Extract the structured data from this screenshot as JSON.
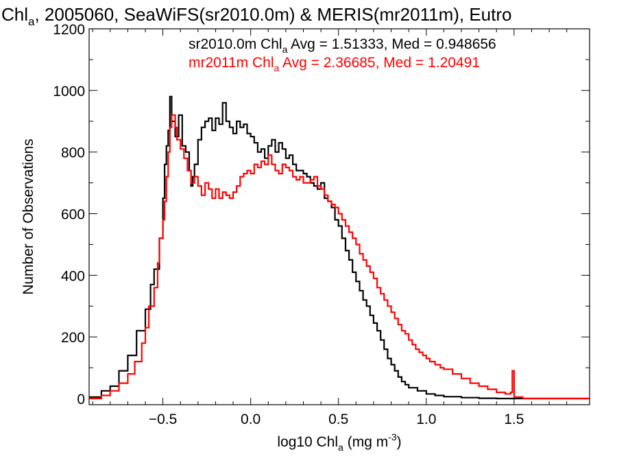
{
  "chart_data": {
    "type": "histogram",
    "title": {
      "prefix": "Chl",
      "sub": "a",
      "rest": ", 2005060, SeaWiFS(sr2010.0m) & MERIS(mr2011m), Eutro"
    },
    "xlabel": {
      "prefix": "log10 Chl",
      "sub": "a",
      "mid": " (mg m",
      "sup": "-3",
      "end": ")"
    },
    "ylabel": "Number of Observations",
    "xlim": [
      -0.92,
      1.93
    ],
    "ylim": [
      -20,
      1200
    ],
    "x_ticks": [
      {
        "value": -0.5,
        "label": "−0.5"
      },
      {
        "value": 0.0,
        "label": "0.0"
      },
      {
        "value": 0.5,
        "label": "0.5"
      },
      {
        "value": 1.0,
        "label": "1.0"
      },
      {
        "value": 1.5,
        "label": "1.5"
      }
    ],
    "y_ticks": [
      {
        "value": 0,
        "label": "0"
      },
      {
        "value": 200,
        "label": "200"
      },
      {
        "value": 400,
        "label": "400"
      },
      {
        "value": 600,
        "label": "600"
      },
      {
        "value": 800,
        "label": "800"
      },
      {
        "value": 1000,
        "label": "1000"
      },
      {
        "value": 1200,
        "label": "1200"
      }
    ],
    "legend": [
      {
        "name": "sr2010.0m",
        "color": "#000000",
        "parts": {
          "a": "sr2010.0m Chl",
          "sub": "a",
          "b": " Avg = 1.51333, Med = 0.948656"
        }
      },
      {
        "name": "mr2011m",
        "color": "#ff0000",
        "parts": {
          "a": "mr2011m Chl",
          "sub": "a",
          "b": " Avg = 2.36685, Med = 1.20491"
        }
      }
    ],
    "series": [
      {
        "name": "sr2010.0m",
        "color": "#000000",
        "points": [
          [
            -0.92,
            5
          ],
          [
            -0.85,
            25
          ],
          [
            -0.8,
            40
          ],
          [
            -0.75,
            90
          ],
          [
            -0.7,
            140
          ],
          [
            -0.65,
            220
          ],
          [
            -0.6,
            290
          ],
          [
            -0.57,
            370
          ],
          [
            -0.55,
            420
          ],
          [
            -0.52,
            520
          ],
          [
            -0.5,
            650
          ],
          [
            -0.49,
            760
          ],
          [
            -0.48,
            820
          ],
          [
            -0.47,
            870
          ],
          [
            -0.46,
            980
          ],
          [
            -0.45,
            900
          ],
          [
            -0.43,
            850
          ],
          [
            -0.41,
            920
          ],
          [
            -0.39,
            820
          ],
          [
            -0.37,
            800
          ],
          [
            -0.35,
            740
          ],
          [
            -0.34,
            690
          ],
          [
            -0.33,
            720
          ],
          [
            -0.32,
            760
          ],
          [
            -0.3,
            840
          ],
          [
            -0.28,
            880
          ],
          [
            -0.26,
            900
          ],
          [
            -0.24,
            910
          ],
          [
            -0.22,
            870
          ],
          [
            -0.2,
            910
          ],
          [
            -0.18,
            890
          ],
          [
            -0.16,
            960
          ],
          [
            -0.14,
            900
          ],
          [
            -0.12,
            880
          ],
          [
            -0.1,
            860
          ],
          [
            -0.08,
            900
          ],
          [
            -0.06,
            880
          ],
          [
            -0.04,
            890
          ],
          [
            -0.02,
            860
          ],
          [
            0.0,
            850
          ],
          [
            0.02,
            830
          ],
          [
            0.04,
            800
          ],
          [
            0.06,
            810
          ],
          [
            0.08,
            780
          ],
          [
            0.1,
            820
          ],
          [
            0.12,
            840
          ],
          [
            0.14,
            800
          ],
          [
            0.16,
            830
          ],
          [
            0.18,
            810
          ],
          [
            0.2,
            780
          ],
          [
            0.22,
            790
          ],
          [
            0.24,
            760
          ],
          [
            0.26,
            740
          ],
          [
            0.28,
            740
          ],
          [
            0.3,
            730
          ],
          [
            0.32,
            720
          ],
          [
            0.34,
            700
          ],
          [
            0.36,
            690
          ],
          [
            0.38,
            680
          ],
          [
            0.4,
            700
          ],
          [
            0.42,
            650
          ],
          [
            0.44,
            640
          ],
          [
            0.46,
            620
          ],
          [
            0.48,
            580
          ],
          [
            0.5,
            560
          ],
          [
            0.52,
            520
          ],
          [
            0.54,
            480
          ],
          [
            0.56,
            450
          ],
          [
            0.58,
            410
          ],
          [
            0.6,
            380
          ],
          [
            0.62,
            350
          ],
          [
            0.64,
            320
          ],
          [
            0.66,
            300
          ],
          [
            0.68,
            270
          ],
          [
            0.7,
            245
          ],
          [
            0.72,
            220
          ],
          [
            0.74,
            190
          ],
          [
            0.76,
            160
          ],
          [
            0.78,
            130
          ],
          [
            0.8,
            110
          ],
          [
            0.82,
            90
          ],
          [
            0.84,
            70
          ],
          [
            0.86,
            55
          ],
          [
            0.88,
            45
          ],
          [
            0.9,
            35
          ],
          [
            0.95,
            25
          ],
          [
            1.0,
            15
          ],
          [
            1.05,
            10
          ],
          [
            1.1,
            6
          ],
          [
            1.2,
            3
          ],
          [
            1.3,
            1
          ],
          [
            1.4,
            0
          ],
          [
            1.5,
            0
          ],
          [
            1.93,
            0
          ]
        ]
      },
      {
        "name": "mr2011m",
        "color": "#ff0000",
        "points": [
          [
            -0.92,
            0
          ],
          [
            -0.85,
            10
          ],
          [
            -0.8,
            25
          ],
          [
            -0.75,
            50
          ],
          [
            -0.7,
            80
          ],
          [
            -0.66,
            120
          ],
          [
            -0.62,
            180
          ],
          [
            -0.6,
            230
          ],
          [
            -0.58,
            300
          ],
          [
            -0.55,
            360
          ],
          [
            -0.53,
            440
          ],
          [
            -0.52,
            520
          ],
          [
            -0.5,
            580
          ],
          [
            -0.49,
            640
          ],
          [
            -0.48,
            720
          ],
          [
            -0.47,
            800
          ],
          [
            -0.46,
            880
          ],
          [
            -0.45,
            920
          ],
          [
            -0.43,
            880
          ],
          [
            -0.42,
            840
          ],
          [
            -0.4,
            810
          ],
          [
            -0.38,
            780
          ],
          [
            -0.36,
            740
          ],
          [
            -0.34,
            700
          ],
          [
            -0.32,
            720
          ],
          [
            -0.3,
            690
          ],
          [
            -0.28,
            660
          ],
          [
            -0.26,
            700
          ],
          [
            -0.24,
            680
          ],
          [
            -0.22,
            650
          ],
          [
            -0.2,
            680
          ],
          [
            -0.18,
            650
          ],
          [
            -0.16,
            670
          ],
          [
            -0.14,
            660
          ],
          [
            -0.12,
            650
          ],
          [
            -0.1,
            670
          ],
          [
            -0.08,
            690
          ],
          [
            -0.06,
            720
          ],
          [
            -0.04,
            730
          ],
          [
            -0.02,
            740
          ],
          [
            0.0,
            730
          ],
          [
            0.02,
            760
          ],
          [
            0.04,
            750
          ],
          [
            0.06,
            770
          ],
          [
            0.08,
            760
          ],
          [
            0.1,
            790
          ],
          [
            0.12,
            760
          ],
          [
            0.14,
            740
          ],
          [
            0.16,
            730
          ],
          [
            0.18,
            760
          ],
          [
            0.2,
            750
          ],
          [
            0.22,
            740
          ],
          [
            0.24,
            720
          ],
          [
            0.26,
            710
          ],
          [
            0.28,
            720
          ],
          [
            0.3,
            700
          ],
          [
            0.32,
            700
          ],
          [
            0.34,
            710
          ],
          [
            0.36,
            720
          ],
          [
            0.38,
            690
          ],
          [
            0.4,
            680
          ],
          [
            0.42,
            660
          ],
          [
            0.44,
            640
          ],
          [
            0.46,
            630
          ],
          [
            0.48,
            620
          ],
          [
            0.5,
            600
          ],
          [
            0.52,
            580
          ],
          [
            0.54,
            560
          ],
          [
            0.56,
            540
          ],
          [
            0.58,
            520
          ],
          [
            0.6,
            500
          ],
          [
            0.62,
            470
          ],
          [
            0.64,
            450
          ],
          [
            0.66,
            430
          ],
          [
            0.68,
            410
          ],
          [
            0.7,
            390
          ],
          [
            0.72,
            360
          ],
          [
            0.74,
            340
          ],
          [
            0.76,
            320
          ],
          [
            0.78,
            300
          ],
          [
            0.8,
            280
          ],
          [
            0.82,
            260
          ],
          [
            0.84,
            240
          ],
          [
            0.86,
            220
          ],
          [
            0.88,
            210
          ],
          [
            0.9,
            190
          ],
          [
            0.92,
            175
          ],
          [
            0.94,
            160
          ],
          [
            0.96,
            150
          ],
          [
            0.98,
            140
          ],
          [
            1.0,
            130
          ],
          [
            1.02,
            120
          ],
          [
            1.05,
            110
          ],
          [
            1.08,
            100
          ],
          [
            1.1,
            95
          ],
          [
            1.15,
            80
          ],
          [
            1.2,
            65
          ],
          [
            1.25,
            50
          ],
          [
            1.3,
            40
          ],
          [
            1.35,
            30
          ],
          [
            1.4,
            20
          ],
          [
            1.45,
            15
          ],
          [
            1.48,
            20
          ],
          [
            1.49,
            90
          ],
          [
            1.5,
            5
          ],
          [
            1.55,
            0
          ],
          [
            1.93,
            0
          ]
        ]
      }
    ]
  }
}
